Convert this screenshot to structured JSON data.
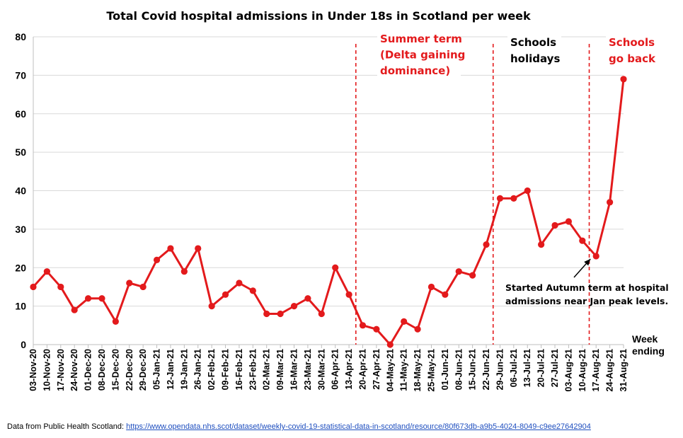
{
  "chart_data": {
    "type": "line",
    "title": "Total Covid hospital admissions in Under 18s in Scotland per week",
    "xlabel": "Week ending",
    "ylabel": "",
    "ylim": [
      0,
      80
    ],
    "yticks": [
      0,
      10,
      20,
      30,
      40,
      50,
      60,
      70,
      80
    ],
    "grid": true,
    "line_color": "#e31a1c",
    "categories": [
      "03-Nov-20",
      "10-Nov-20",
      "17-Nov-20",
      "24-Nov-20",
      "01-Dec-20",
      "08-Dec-20",
      "15-Dec-20",
      "22-Dec-20",
      "29-Dec-20",
      "05-Jan-21",
      "12-Jan-21",
      "19-Jan-21",
      "26-Jan-21",
      "02-Feb-21",
      "09-Feb-21",
      "16-Feb-21",
      "23-Feb-21",
      "02-Mar-21",
      "09-Mar-21",
      "16-Mar-21",
      "23-Mar-21",
      "30-Mar-21",
      "06-Apr-21",
      "13-Apr-21",
      "20-Apr-21",
      "27-Apr-21",
      "04-May-21",
      "11-May-21",
      "18-May-21",
      "25-May-21",
      "01-Jun-21",
      "08-Jun-21",
      "15-Jun-21",
      "22-Jun-21",
      "29-Jun-21",
      "06-Jul-21",
      "13-Jul-21",
      "20-Jul-21",
      "27-Jul-21",
      "03-Aug-21",
      "10-Aug-21",
      "17-Aug-21",
      "24-Aug-21",
      "31-Aug-21"
    ],
    "values": [
      15,
      19,
      15,
      9,
      12,
      12,
      6,
      16,
      15,
      22,
      25,
      19,
      25,
      10,
      13,
      16,
      14,
      8,
      8,
      10,
      12,
      8,
      20,
      13,
      5,
      4,
      0,
      6,
      4,
      15,
      13,
      19,
      18,
      26,
      38,
      38,
      40,
      26,
      31,
      32,
      27,
      23,
      37,
      69
    ],
    "vlines": [
      {
        "after": "13-Apr-21",
        "color": "#e31a1c"
      },
      {
        "after": "22-Jun-21",
        "color": "#e31a1c"
      },
      {
        "after": "10-Aug-21",
        "color": "#e31a1c"
      }
    ],
    "annotations": [
      {
        "lines": [
          "Summer term",
          "(Delta gaining",
          "dominance)"
        ],
        "color": "#e31a1c"
      },
      {
        "lines": [
          "Schools",
          "holidays"
        ],
        "color": "#000000"
      },
      {
        "lines": [
          "Schools",
          "go back"
        ],
        "color": "#e31a1c"
      },
      {
        "lines": [
          "Started Autumn term at hospital",
          "admissions near Jan peak levels."
        ],
        "color": "#000000",
        "arrow_to": "17-Aug-21"
      }
    ],
    "x_axis_side_label": [
      "Week",
      "ending"
    ]
  },
  "source": {
    "prefix": "Data from Public Health Scotland: ",
    "link_text": "https://www.opendata.nhs.scot/dataset/weekly-covid-19-statistical-data-in-scotland/resource/80f673db-a9b5-4024-8049-c9ee27642904"
  }
}
